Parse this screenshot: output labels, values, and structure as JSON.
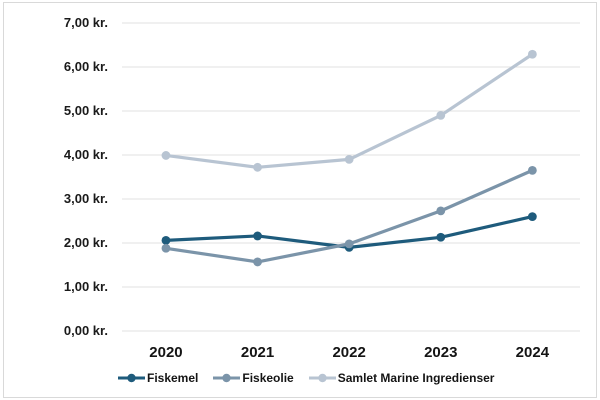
{
  "chart_data": {
    "type": "line",
    "title": "",
    "categories": [
      "2020",
      "2021",
      "2022",
      "2023",
      "2024"
    ],
    "series": [
      {
        "name": "Fiskemel",
        "color": "#1e5b7c",
        "values": [
          2.06,
          2.16,
          1.9,
          2.13,
          2.6
        ]
      },
      {
        "name": "Fiskeolie",
        "color": "#7b94a9",
        "values": [
          1.88,
          1.57,
          1.98,
          2.73,
          3.65
        ]
      },
      {
        "name": "Samlet Marine Ingredienser",
        "color": "#b8c4d2",
        "values": [
          3.99,
          3.72,
          3.9,
          4.9,
          6.29
        ]
      }
    ],
    "y_ticks": [
      {
        "value": 0,
        "label": "0,00 kr."
      },
      {
        "value": 1,
        "label": "1,00 kr."
      },
      {
        "value": 2,
        "label": "2,00 kr."
      },
      {
        "value": 3,
        "label": "3,00 kr."
      },
      {
        "value": 4,
        "label": "4,00 kr."
      },
      {
        "value": 5,
        "label": "5,00 kr."
      },
      {
        "value": 6,
        "label": "6,00 kr."
      },
      {
        "value": 7,
        "label": "7,00 kr."
      }
    ],
    "ylim": [
      0,
      7
    ],
    "xlabel": "",
    "ylabel": "",
    "grid": true,
    "legend_position": "bottom"
  },
  "colors": {
    "background": "#ffffff",
    "frame_border": "#d9d9d9",
    "gridline": "#e2e2e2",
    "text": "#1a1a1a"
  }
}
